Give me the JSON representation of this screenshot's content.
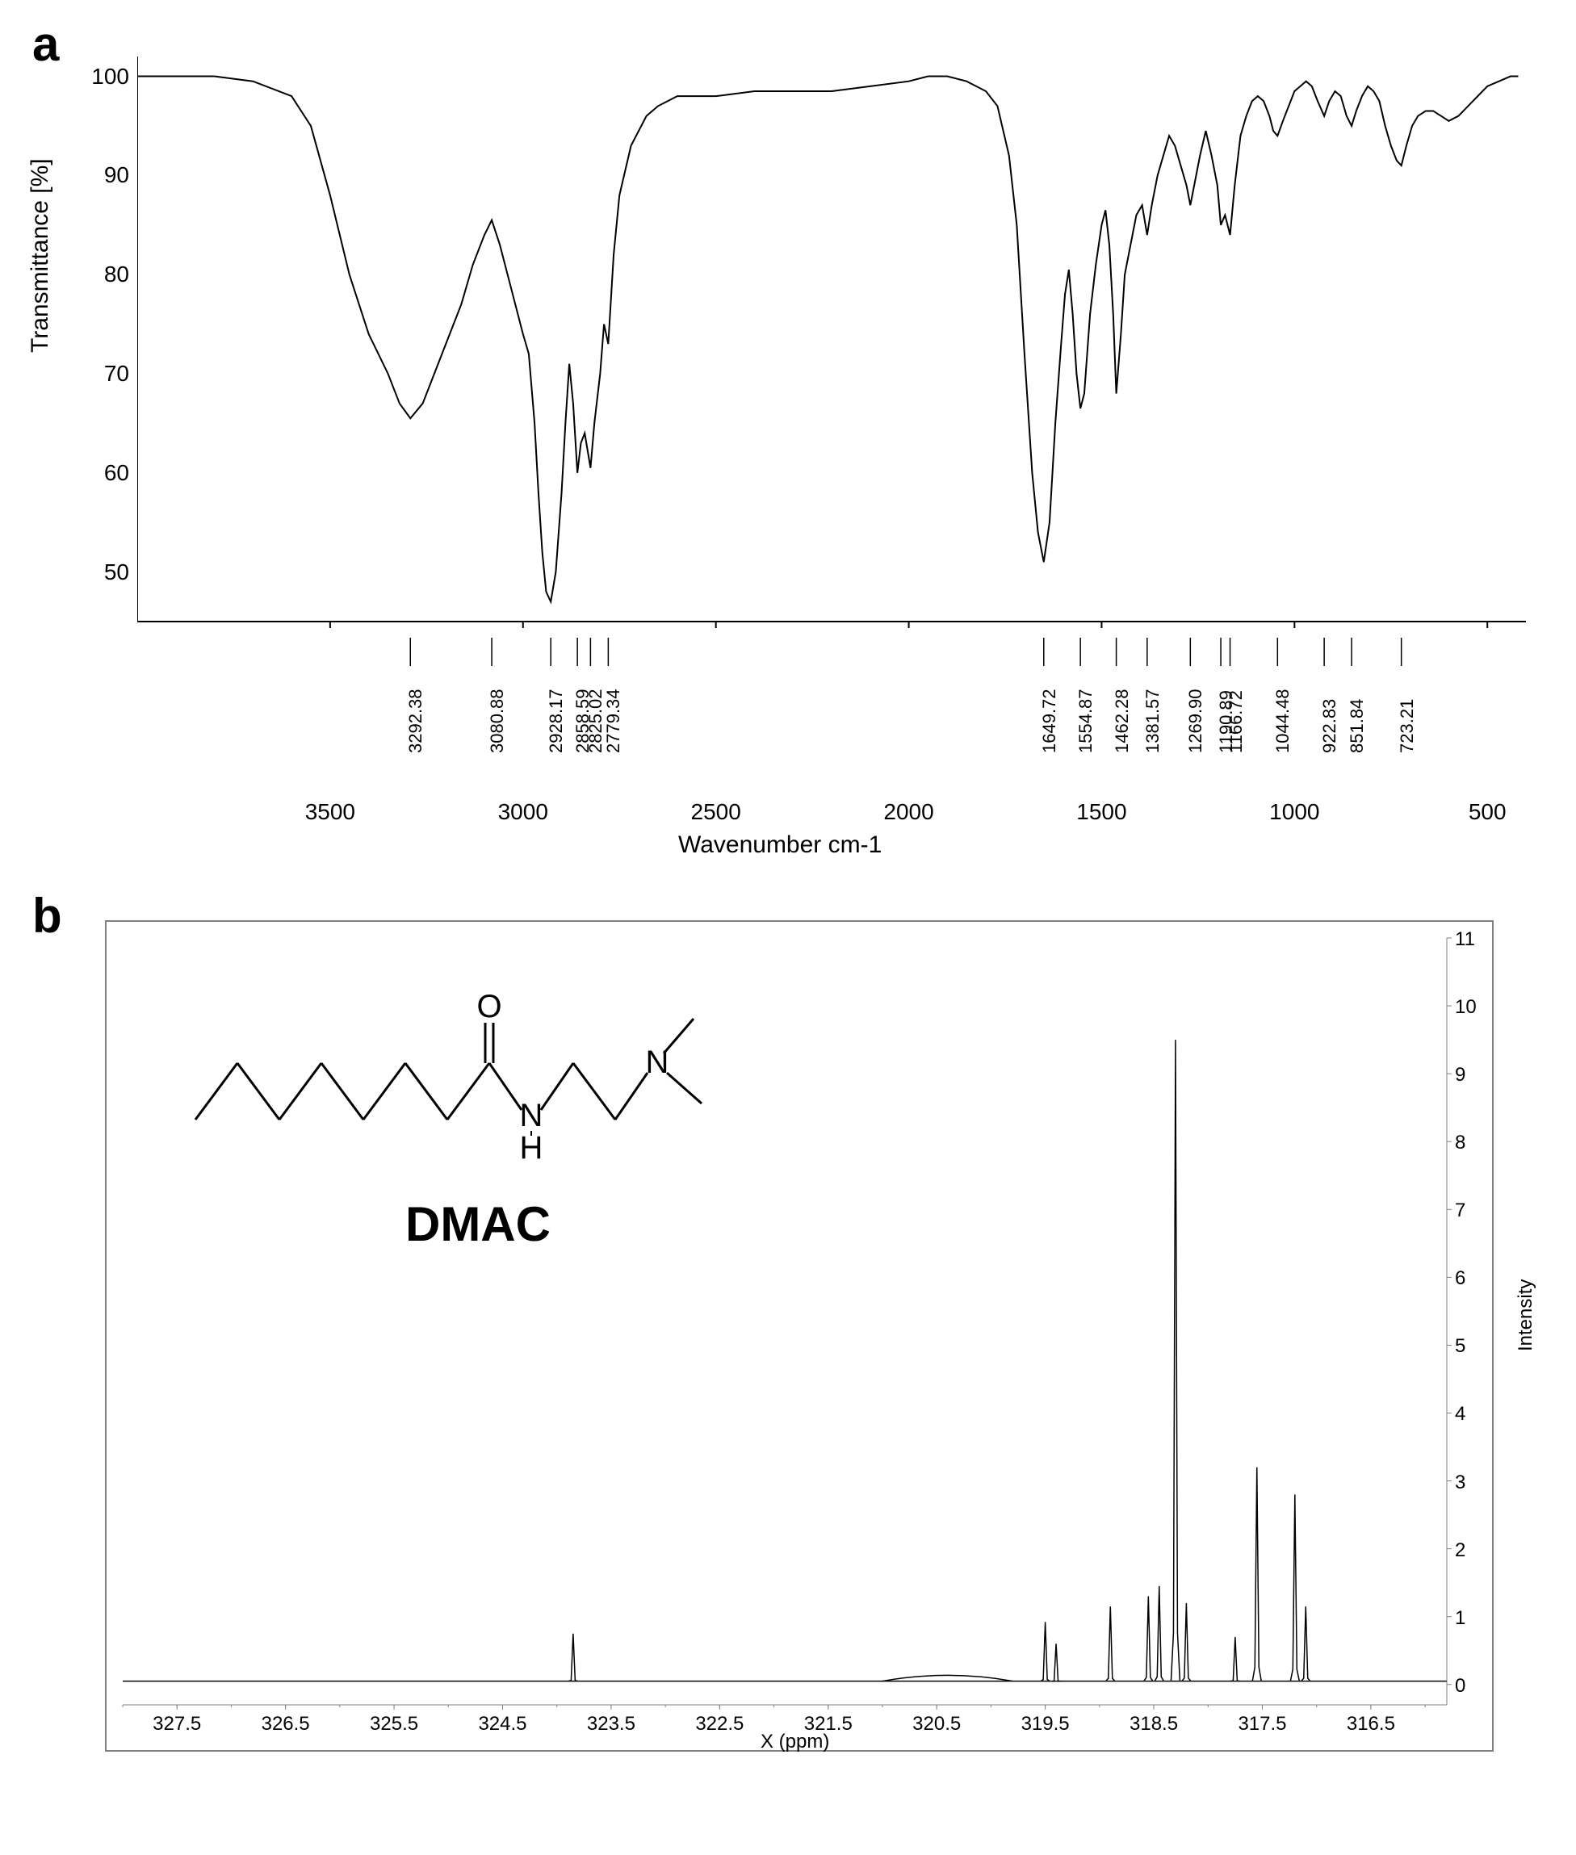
{
  "panel_a": {
    "label": "a",
    "chart": {
      "type": "line",
      "xlabel": "Wavenumber cm-1",
      "ylabel": "Transmittance [%]",
      "xlim": [
        4000,
        400
      ],
      "ylim": [
        45,
        102
      ],
      "xticks": [
        3500,
        3000,
        2500,
        2000,
        1500,
        1000,
        500
      ],
      "yticks": [
        50,
        60,
        70,
        80,
        90,
        100
      ],
      "line_color": "#000000",
      "line_width": 2,
      "background_color": "#ffffff",
      "axis_color": "#000000",
      "label_fontsize": 30,
      "tick_fontsize": 28,
      "peak_labels": [
        "3292.38",
        "3080.88",
        "2928.17",
        "2858.59",
        "2825.02",
        "2779.34",
        "1649.72",
        "1554.87",
        "1462.28",
        "1381.57",
        "1269.90",
        "1190.89",
        "1166.72",
        "1044.48",
        "922.83",
        "851.84",
        "723.21"
      ],
      "peak_positions_x": [
        3292,
        3081,
        2928,
        2859,
        2825,
        2779,
        1650,
        1555,
        1462,
        1382,
        1270,
        1191,
        1167,
        1044,
        923,
        852,
        723
      ],
      "peak_label_fontsize": 22,
      "spectrum_points": [
        [
          4000,
          100
        ],
        [
          3900,
          100
        ],
        [
          3800,
          100
        ],
        [
          3700,
          99.5
        ],
        [
          3600,
          98
        ],
        [
          3550,
          95
        ],
        [
          3500,
          88
        ],
        [
          3450,
          80
        ],
        [
          3400,
          74
        ],
        [
          3350,
          70
        ],
        [
          3320,
          67
        ],
        [
          3292,
          65.5
        ],
        [
          3260,
          67
        ],
        [
          3230,
          70
        ],
        [
          3200,
          73
        ],
        [
          3160,
          77
        ],
        [
          3130,
          81
        ],
        [
          3100,
          84
        ],
        [
          3081,
          85.5
        ],
        [
          3060,
          83
        ],
        [
          3040,
          80
        ],
        [
          3020,
          77
        ],
        [
          3000,
          74
        ],
        [
          2985,
          72
        ],
        [
          2970,
          65
        ],
        [
          2960,
          58
        ],
        [
          2950,
          52
        ],
        [
          2940,
          48
        ],
        [
          2928,
          47
        ],
        [
          2915,
          50
        ],
        [
          2900,
          58
        ],
        [
          2890,
          65
        ],
        [
          2880,
          71
        ],
        [
          2870,
          67
        ],
        [
          2859,
          60
        ],
        [
          2850,
          63
        ],
        [
          2840,
          64
        ],
        [
          2825,
          60.5
        ],
        [
          2815,
          65
        ],
        [
          2800,
          70
        ],
        [
          2790,
          75
        ],
        [
          2779,
          73
        ],
        [
          2765,
          82
        ],
        [
          2750,
          88
        ],
        [
          2720,
          93
        ],
        [
          2680,
          96
        ],
        [
          2650,
          97
        ],
        [
          2600,
          98
        ],
        [
          2500,
          98
        ],
        [
          2400,
          98.5
        ],
        [
          2300,
          98.5
        ],
        [
          2200,
          98.5
        ],
        [
          2100,
          99
        ],
        [
          2000,
          99.5
        ],
        [
          1950,
          100
        ],
        [
          1900,
          100
        ],
        [
          1850,
          99.5
        ],
        [
          1800,
          98.5
        ],
        [
          1770,
          97
        ],
        [
          1740,
          92
        ],
        [
          1720,
          85
        ],
        [
          1700,
          72
        ],
        [
          1680,
          60
        ],
        [
          1665,
          54
        ],
        [
          1650,
          51
        ],
        [
          1635,
          55
        ],
        [
          1620,
          65
        ],
        [
          1605,
          73
        ],
        [
          1595,
          78
        ],
        [
          1585,
          80.5
        ],
        [
          1575,
          76
        ],
        [
          1565,
          70
        ],
        [
          1555,
          66.5
        ],
        [
          1545,
          68
        ],
        [
          1530,
          76
        ],
        [
          1515,
          81
        ],
        [
          1500,
          85
        ],
        [
          1490,
          86.5
        ],
        [
          1480,
          83
        ],
        [
          1470,
          76
        ],
        [
          1462,
          68
        ],
        [
          1450,
          74
        ],
        [
          1440,
          80
        ],
        [
          1425,
          83
        ],
        [
          1410,
          86
        ],
        [
          1395,
          87
        ],
        [
          1382,
          84
        ],
        [
          1370,
          87
        ],
        [
          1355,
          90
        ],
        [
          1340,
          92
        ],
        [
          1325,
          94
        ],
        [
          1310,
          93
        ],
        [
          1295,
          91
        ],
        [
          1280,
          89
        ],
        [
          1270,
          87
        ],
        [
          1260,
          89
        ],
        [
          1245,
          92
        ],
        [
          1230,
          94.5
        ],
        [
          1215,
          92
        ],
        [
          1200,
          89
        ],
        [
          1191,
          85
        ],
        [
          1180,
          86
        ],
        [
          1167,
          84
        ],
        [
          1155,
          89
        ],
        [
          1140,
          94
        ],
        [
          1125,
          96
        ],
        [
          1110,
          97.5
        ],
        [
          1095,
          98
        ],
        [
          1080,
          97.5
        ],
        [
          1065,
          96
        ],
        [
          1055,
          94.5
        ],
        [
          1044,
          94
        ],
        [
          1030,
          95.5
        ],
        [
          1015,
          97
        ],
        [
          1000,
          98.5
        ],
        [
          985,
          99
        ],
        [
          970,
          99.5
        ],
        [
          955,
          99
        ],
        [
          940,
          97.5
        ],
        [
          923,
          96
        ],
        [
          910,
          97.5
        ],
        [
          895,
          98.5
        ],
        [
          880,
          98
        ],
        [
          865,
          96
        ],
        [
          852,
          95
        ],
        [
          840,
          96.5
        ],
        [
          825,
          98
        ],
        [
          810,
          99
        ],
        [
          795,
          98.5
        ],
        [
          780,
          97.5
        ],
        [
          765,
          95
        ],
        [
          750,
          93
        ],
        [
          735,
          91.5
        ],
        [
          723,
          91
        ],
        [
          710,
          93
        ],
        [
          695,
          95
        ],
        [
          680,
          96
        ],
        [
          660,
          96.5
        ],
        [
          640,
          96.5
        ],
        [
          620,
          96
        ],
        [
          600,
          95.5
        ],
        [
          575,
          96
        ],
        [
          550,
          97
        ],
        [
          525,
          98
        ],
        [
          500,
          99
        ],
        [
          470,
          99.5
        ],
        [
          440,
          100
        ],
        [
          420,
          100
        ]
      ]
    }
  },
  "panel_b": {
    "label": "b",
    "molecule_name": "DMAC",
    "molecule_structure": {
      "description": "N-(2-(dimethylamino)ethyl)octanamide",
      "atoms_labels": [
        "O",
        "N",
        "H",
        "N"
      ],
      "bond_color": "#000000"
    },
    "chart": {
      "type": "nmr",
      "xlabel": "X (ppm)",
      "ylabel": "Intensity",
      "xlim": [
        328,
        315.8
      ],
      "ylim": [
        -0.3,
        11
      ],
      "xticks": [
        327.5,
        326.5,
        325.5,
        324.5,
        323.5,
        322.5,
        321.5,
        320.5,
        319.5,
        318.5,
        317.5,
        316.5
      ],
      "yticks": [
        0,
        1,
        2,
        3,
        4,
        5,
        6,
        7,
        8,
        9,
        10,
        11
      ],
      "line_color": "#000000",
      "line_width": 1.5,
      "background_color": "#ffffff",
      "axis_color": "#808080",
      "border_color": "#808080",
      "label_fontsize": 24,
      "tick_fontsize": 24,
      "peaks": [
        {
          "x": 323.85,
          "height": 0.75
        },
        {
          "x": 319.5,
          "height": 0.92
        },
        {
          "x": 319.4,
          "height": 0.6
        },
        {
          "x": 318.9,
          "height": 1.15
        },
        {
          "x": 318.55,
          "height": 1.3
        },
        {
          "x": 318.45,
          "height": 1.45
        },
        {
          "x": 318.3,
          "height": 9.5
        },
        {
          "x": 318.2,
          "height": 1.2
        },
        {
          "x": 317.75,
          "height": 0.7
        },
        {
          "x": 317.55,
          "height": 3.2
        },
        {
          "x": 317.2,
          "height": 2.8
        },
        {
          "x": 317.1,
          "height": 1.15
        }
      ]
    }
  }
}
